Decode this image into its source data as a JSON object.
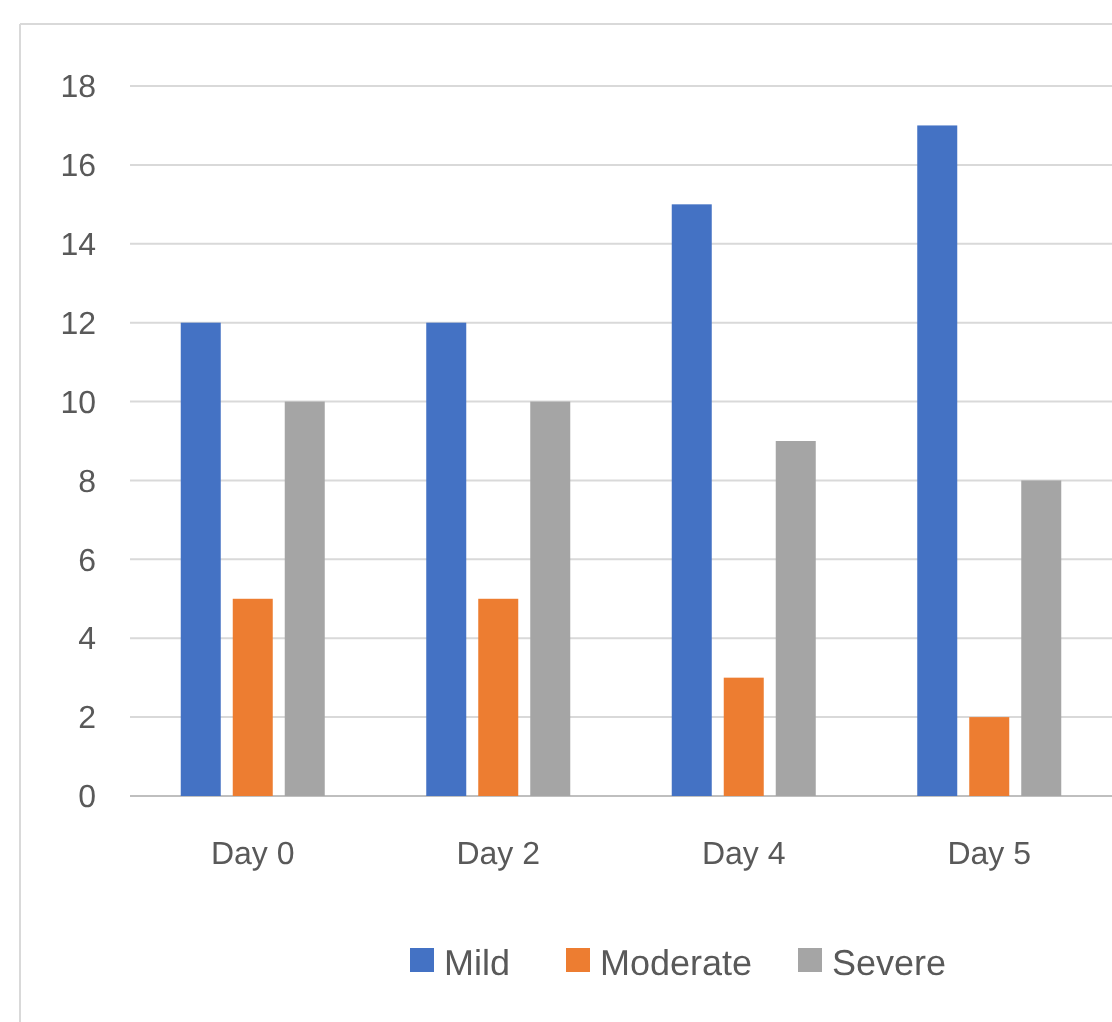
{
  "chart_data": {
    "type": "bar",
    "categories": [
      "Day 0",
      "Day 2",
      "Day 4",
      "Day 5"
    ],
    "series": [
      {
        "name": "Mild",
        "color": "#4472c4",
        "values": [
          12,
          12,
          15,
          17
        ]
      },
      {
        "name": "Moderate",
        "color": "#ed7d31",
        "values": [
          5,
          5,
          3,
          2
        ]
      },
      {
        "name": "Severe",
        "color": "#a5a5a5",
        "values": [
          10,
          10,
          9,
          8
        ]
      }
    ],
    "ylim": [
      0,
      18
    ],
    "yticks": [
      0,
      2,
      4,
      6,
      8,
      10,
      12,
      14,
      16,
      18
    ],
    "grid": "y",
    "legend": "bottom"
  }
}
